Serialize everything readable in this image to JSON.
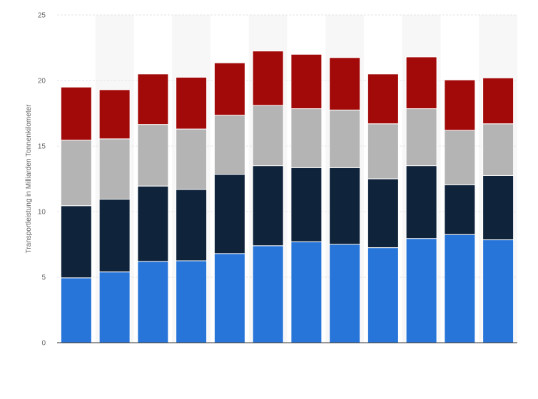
{
  "chart_data": {
    "type": "bar",
    "stacked": true,
    "ylabel": "Transportleistung in Milliarden Tonnenkilometer",
    "ylim": [
      0,
      25
    ],
    "yticks": [
      0,
      5,
      10,
      15,
      20,
      25
    ],
    "grid": true,
    "categories": [
      "",
      "",
      "",
      "",
      "",
      "",
      "",
      "",
      "",
      "",
      "",
      ""
    ],
    "series": [
      {
        "color": "#2775d9",
        "values": [
          4.95,
          5.4,
          6.2,
          6.25,
          6.8,
          7.4,
          7.7,
          7.5,
          7.25,
          7.95,
          8.25,
          7.85
        ]
      },
      {
        "color": "#0f233b",
        "values": [
          5.5,
          5.55,
          5.75,
          5.45,
          6.05,
          6.1,
          5.65,
          5.85,
          5.25,
          5.55,
          3.8,
          4.9
        ]
      },
      {
        "color": "#b4b4b4",
        "values": [
          5.0,
          4.6,
          4.7,
          4.6,
          4.5,
          4.6,
          4.5,
          4.4,
          4.2,
          4.35,
          4.15,
          3.95
        ]
      },
      {
        "color": "#a20a0a",
        "values": [
          4.05,
          3.75,
          3.85,
          3.95,
          4.0,
          4.15,
          4.15,
          4.0,
          3.8,
          3.95,
          3.85,
          3.5
        ]
      }
    ]
  }
}
